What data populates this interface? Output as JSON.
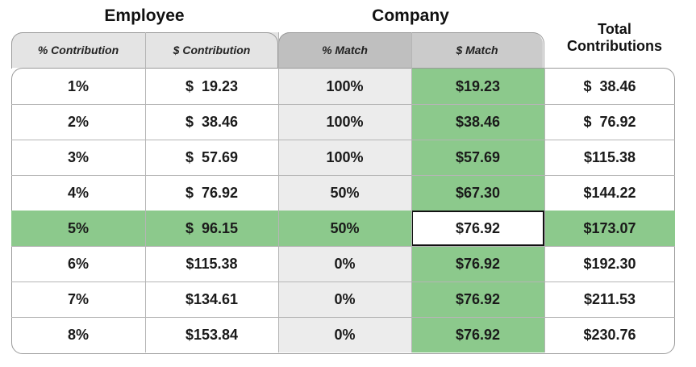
{
  "groups": {
    "employee": "Employee",
    "company": "Company",
    "total": "Total\nContributions"
  },
  "headers": [
    "% Contribution",
    "$ Contribution",
    "% Match",
    "$ Match"
  ],
  "colors": {
    "match_green": "#8cc98c",
    "header_employee": "#e4e4e4",
    "header_company": "#bfbfbf",
    "pct_match_column": "#ececec"
  },
  "rows": [
    {
      "pct": "1%",
      "contrib": "$  19.23",
      "match_pct": "100%",
      "match_amt": "$19.23",
      "total": "$  38.46"
    },
    {
      "pct": "2%",
      "contrib": "$  38.46",
      "match_pct": "100%",
      "match_amt": "$38.46",
      "total": "$  76.92"
    },
    {
      "pct": "3%",
      "contrib": "$  57.69",
      "match_pct": "100%",
      "match_amt": "$57.69",
      "total": "$115.38"
    },
    {
      "pct": "4%",
      "contrib": "$  76.92",
      "match_pct": "50%",
      "match_amt": "$67.30",
      "total": "$144.22"
    },
    {
      "pct": "5%",
      "contrib": "$  96.15",
      "match_pct": "50%",
      "match_amt": "$76.92",
      "total": "$173.07",
      "highlight": true
    },
    {
      "pct": "6%",
      "contrib": "$115.38",
      "match_pct": "0%",
      "match_amt": "$76.92",
      "total": "$192.30"
    },
    {
      "pct": "7%",
      "contrib": "$134.61",
      "match_pct": "0%",
      "match_amt": "$76.92",
      "total": "$211.53"
    },
    {
      "pct": "8%",
      "contrib": "$153.84",
      "match_pct": "0%",
      "match_amt": "$76.92",
      "total": "$230.76"
    }
  ]
}
